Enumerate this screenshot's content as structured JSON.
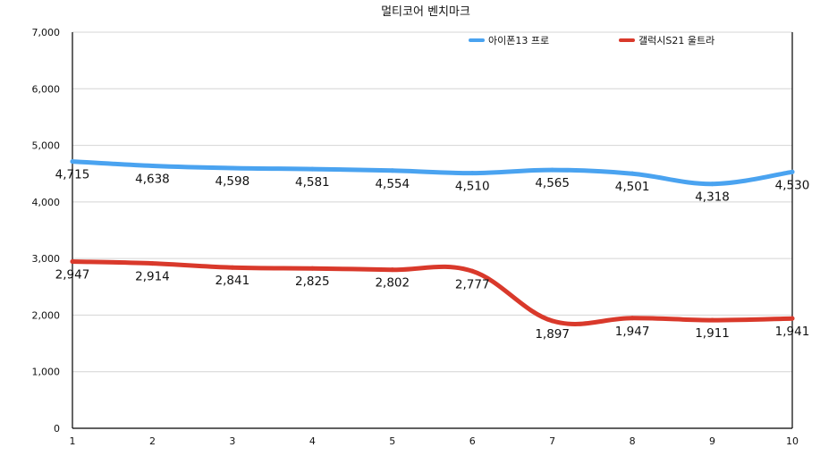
{
  "chart_data": {
    "type": "line",
    "title": "멀티코어 벤치마크",
    "xlabel": "",
    "ylabel": "",
    "x": [
      1,
      2,
      3,
      4,
      5,
      6,
      7,
      8,
      9,
      10
    ],
    "xtick_labels": [
      "1",
      "2",
      "3",
      "4",
      "5",
      "6",
      "7",
      "8",
      "9",
      "10"
    ],
    "ylim": [
      0,
      7000
    ],
    "yticks": [
      0,
      1000,
      2000,
      3000,
      4000,
      5000,
      6000,
      7000
    ],
    "ytick_labels": [
      "0",
      "1,000",
      "2,000",
      "3,000",
      "4,000",
      "5,000",
      "6,000",
      "7,000"
    ],
    "grid": true,
    "legend_position": "top-right",
    "series": [
      {
        "name": "아이폰13 프로",
        "color": "#4aa3f0",
        "values": [
          4715,
          4638,
          4598,
          4581,
          4554,
          4510,
          4565,
          4501,
          4318,
          4530
        ],
        "labels": [
          "4,715",
          "4,638",
          "4,598",
          "4,581",
          "4,554",
          "4,510",
          "4,565",
          "4,501",
          "4,318",
          "4,530"
        ]
      },
      {
        "name": "갤럭시S21 울트라",
        "color": "#d9392b",
        "values": [
          2947,
          2914,
          2841,
          2825,
          2802,
          2777,
          1897,
          1947,
          1911,
          1941
        ],
        "labels": [
          "2,947",
          "2,914",
          "2,841",
          "2,825",
          "2,802",
          "2,777",
          "1,897",
          "1,947",
          "1,911",
          "1,941"
        ]
      }
    ]
  }
}
